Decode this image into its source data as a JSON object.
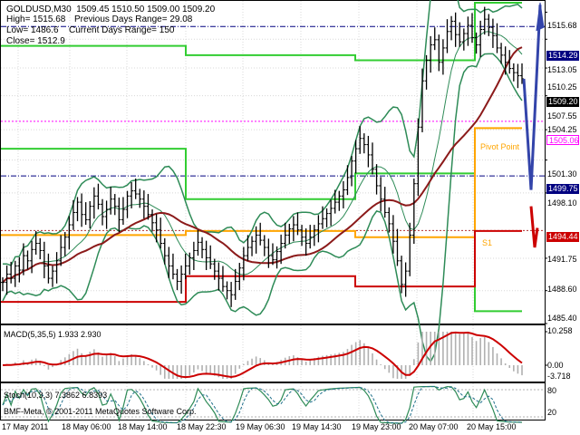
{
  "header": {
    "symbol": "GOLDUSD,M30",
    "ohlc": "1509.45 1510.50 1509.00 1509.20",
    "high": "High= 1515.68",
    "prev_range": "Previous Days Range= 29.08",
    "low": "Low= 1486.6",
    "curr_range": "Current Days Range= 150",
    "close": "Close= 1512.9"
  },
  "price_labels": {
    "r_line": "1514.29",
    "current": "1509.20",
    "pivot": "1505.06",
    "s_line": "1499.75",
    "red_line": "1494.44"
  },
  "price_axis": [
    "1515.68",
    "1513.05",
    "1510.25",
    "1507.55",
    "1504.25",
    "1501.30",
    "1498.10",
    "1491.75",
    "1488.60",
    "1485.40"
  ],
  "annotations": {
    "pivot": "Pivot Point",
    "s1": "S1"
  },
  "macd": {
    "title": "MACD(5,35,5) 1.933 2.930",
    "axis_top": "10.258",
    "axis_mid": "0.00",
    "axis_bottom": "-3.718"
  },
  "stoch": {
    "title": "Stoch(10,3,3) 7.3862 6.8393",
    "axis_top": "80",
    "axis_bottom": "20"
  },
  "copyright": "BMF-Meta, © 2001-2011 MetaQuotes Software Corp.",
  "time_axis": [
    "17 May 2011",
    "18 May 06:00",
    "18 May 14:00",
    "18 May 22:30",
    "19 May 06:30",
    "19 May 14:30",
    "19 May 23:00",
    "20 May 07:00",
    "20 May 15:00"
  ],
  "colors": {
    "bars": "#000000",
    "bollinger": "#2e8b57",
    "moving_average": "#8b1a1a",
    "daily_high_low": "#32cd32",
    "pivot_level": "#ffa500",
    "support_level": "#cc0000",
    "projection_up": "#3344aa",
    "projection_down": "#cc0000",
    "current_price_bg": "#000000",
    "pivot_label": "#ff00ff",
    "r_line": "#000080",
    "macd_signal": "#cc0000",
    "macd_histogram": "#b0b0b0",
    "stoch_main": "#2e8b57",
    "stoch_signal": "#1f6f8b"
  },
  "chart_data": {
    "type": "candlestick",
    "symbol": "GOLDUSD",
    "timeframe": "M30",
    "price_range": [
      1485.4,
      1516.6
    ],
    "closes": [
      1489.4,
      1490.2,
      1489.8,
      1491.0,
      1490.6,
      1492.0,
      1491.5,
      1492.6,
      1493.2,
      1492.5,
      1491.0,
      1489.8,
      1490.5,
      1491.5,
      1492.8,
      1493.8,
      1495.0,
      1496.2,
      1497.2,
      1496.0,
      1495.5,
      1496.8,
      1497.8,
      1497.0,
      1495.8,
      1496.5,
      1497.5,
      1496.8,
      1495.5,
      1496.5,
      1497.8,
      1498.3,
      1498.0,
      1497.5,
      1496.8,
      1496.0,
      1495.2,
      1494.5,
      1493.2,
      1492.0,
      1491.0,
      1490.2,
      1489.5,
      1490.2,
      1491.0,
      1491.8,
      1492.5,
      1493.3,
      1492.6,
      1491.8,
      1491.2,
      1490.5,
      1489.8,
      1489.0,
      1488.6,
      1488.2,
      1489.5,
      1490.8,
      1492.0,
      1492.8,
      1493.4,
      1494.0,
      1493.5,
      1492.8,
      1492.0,
      1491.6,
      1492.4,
      1493.2,
      1494.0,
      1494.6,
      1495.0,
      1494.5,
      1493.8,
      1493.2,
      1493.8,
      1494.5,
      1495.1,
      1495.6,
      1496.1,
      1496.6,
      1497.2,
      1497.8,
      1498.4,
      1499.6,
      1501.2,
      1502.4,
      1503.4,
      1502.8,
      1501.8,
      1500.4,
      1498.8,
      1497.5,
      1496.2,
      1495.1,
      1493.4,
      1491.5,
      1489.2,
      1490.5,
      1494.0,
      1499.0,
      1504.5,
      1509.0,
      1511.0,
      1512.5,
      1513.0,
      1510.8,
      1512.2,
      1513.8,
      1514.8,
      1513.5,
      1512.8,
      1513.6,
      1514.4,
      1513.2,
      1512.5,
      1514.0,
      1515.0,
      1514.2,
      1513.4,
      1512.2,
      1511.5,
      1510.8,
      1510.2,
      1509.8,
      1509.5,
      1509.2
    ]
  }
}
